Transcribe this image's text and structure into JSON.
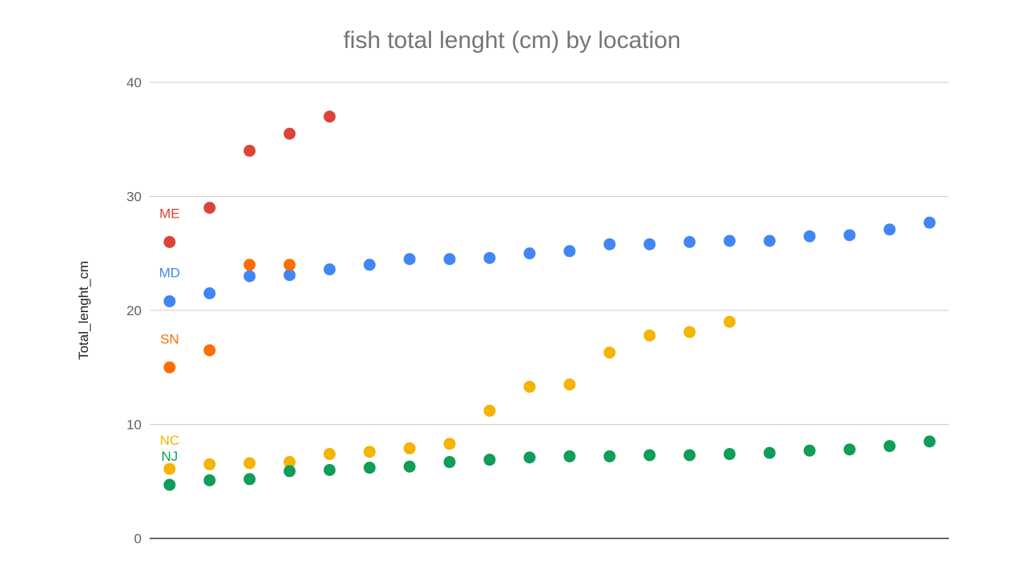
{
  "chart_data": {
    "type": "scatter",
    "title": "fish total lenght (cm) by location",
    "xlabel": "",
    "ylabel": "Total_lenght_cm",
    "ylim": [
      0,
      40
    ],
    "yticks": [
      "0",
      "10",
      "20",
      "30",
      "40"
    ],
    "grid": true,
    "legend": "inline labels at left",
    "x": [
      1,
      2,
      3,
      4,
      5,
      6,
      7,
      8,
      9,
      10,
      11,
      12,
      13,
      14,
      15,
      16,
      17,
      18,
      19,
      20
    ],
    "series": [
      {
        "name": "ME",
        "color": "#db4437",
        "values": [
          26.0,
          29.0,
          34.0,
          35.5,
          37.0
        ]
      },
      {
        "name": "MD",
        "color": "#4285f4",
        "values": [
          20.8,
          21.5,
          23.0,
          23.1,
          23.6,
          24.0,
          24.5,
          24.5,
          24.6,
          25.0,
          25.2,
          25.8,
          25.8,
          26.0,
          26.1,
          26.1,
          26.5,
          26.6,
          27.1,
          27.7
        ]
      },
      {
        "name": "SN",
        "color": "#ff6d00",
        "values": [
          15.0,
          16.5,
          24.0,
          24.0
        ]
      },
      {
        "name": "NC",
        "color": "#f4b400",
        "values": [
          6.1,
          6.5,
          6.6,
          6.7,
          7.4,
          7.6,
          7.9,
          8.3,
          11.2,
          13.3,
          13.5,
          16.3,
          17.8,
          18.1,
          19.0
        ]
      },
      {
        "name": "NJ",
        "color": "#0f9d58",
        "values": [
          4.7,
          5.1,
          5.2,
          5.9,
          6.0,
          6.2,
          6.3,
          6.7,
          6.9,
          7.1,
          7.2,
          7.2,
          7.3,
          7.3,
          7.4,
          7.5,
          7.7,
          7.8,
          8.1,
          8.5
        ]
      }
    ]
  }
}
